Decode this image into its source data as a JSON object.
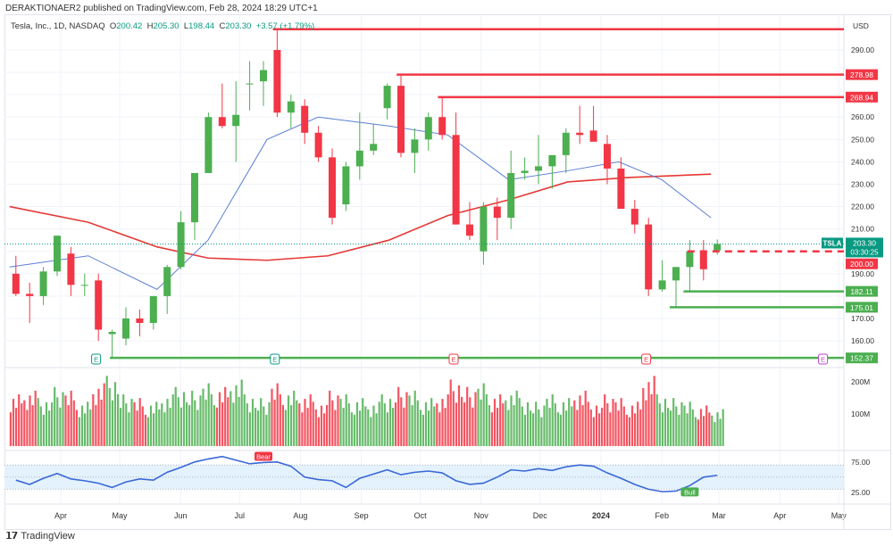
{
  "publisher_line": "DERAKTIONAER2 published on TradingView.com, Feb 28, 2024 18:29 UTC+1",
  "legend": {
    "symbol": "Tesla, Inc., 1D, NASDAQ",
    "o_label": "O",
    "o": "200.42",
    "h_label": "H",
    "h": "205.30",
    "l_label": "L",
    "l": "198.44",
    "c_label": "C",
    "c": "203.30",
    "change": "+3.57 (+1.79%)"
  },
  "footer": {
    "brand": "TradingView"
  },
  "colors": {
    "up": "#4caf50",
    "down": "#f23645",
    "ma_fast": "#5b7fd6",
    "ma_slow": "#e53935",
    "rsi": "#3a67d8",
    "rsi_band": "#e3f2fd",
    "earnings": "#089981",
    "earnings_future": "#c040d0",
    "last_price": "#089981"
  },
  "chart_data": [
    {
      "type": "candlestick",
      "title": "",
      "currency": "USD",
      "ylim": [
        150,
        300
      ],
      "y_ticks": [
        160,
        170,
        180,
        190,
        200,
        210,
        220,
        230,
        240,
        250,
        260,
        270,
        280,
        290
      ],
      "x_ticks": [
        {
          "date": "2023-04-01",
          "label": "Apr"
        },
        {
          "date": "2023-05-01",
          "label": "May"
        },
        {
          "date": "2023-06-01",
          "label": "Jun"
        },
        {
          "date": "2023-07-01",
          "label": "Jul"
        },
        {
          "date": "2023-08-01",
          "label": "Aug"
        },
        {
          "date": "2023-09-01",
          "label": "Sep"
        },
        {
          "date": "2023-10-01",
          "label": "Oct"
        },
        {
          "date": "2023-11-01",
          "label": "Nov"
        },
        {
          "date": "2023-12-01",
          "label": "Dec"
        },
        {
          "date": "2024-01-01",
          "label": "2024"
        },
        {
          "date": "2024-02-01",
          "label": "Feb"
        },
        {
          "date": "2024-03-01",
          "label": "Mar"
        },
        {
          "date": "2024-04-01",
          "label": "Apr"
        },
        {
          "date": "2024-05-01",
          "label": "May"
        }
      ],
      "bars": [
        [
          "2023-03-06",
          190,
          198,
          180,
          181
        ],
        [
          "2023-03-13",
          181,
          186,
          168,
          180
        ],
        [
          "2023-03-20",
          180,
          193,
          176,
          191
        ],
        [
          "2023-03-27",
          191,
          207,
          189,
          207
        ],
        [
          "2023-04-03",
          199,
          202,
          180,
          185
        ],
        [
          "2023-04-10",
          185,
          190,
          180,
          185
        ],
        [
          "2023-04-17",
          187,
          190,
          160,
          165
        ],
        [
          "2023-04-24",
          163,
          165,
          152,
          164
        ],
        [
          "2023-05-01",
          161,
          175,
          158,
          170
        ],
        [
          "2023-05-08",
          170,
          174,
          162,
          168
        ],
        [
          "2023-05-15",
          168,
          180,
          165,
          180
        ],
        [
          "2023-05-22",
          180,
          194,
          172,
          193
        ],
        [
          "2023-05-29",
          193,
          218,
          192,
          213
        ],
        [
          "2023-06-05",
          213,
          235,
          205,
          235
        ],
        [
          "2023-06-12",
          235,
          262,
          236,
          260
        ],
        [
          "2023-06-19",
          260,
          275,
          255,
          256
        ],
        [
          "2023-06-26",
          256,
          276,
          240,
          261
        ],
        [
          "2023-07-03",
          275,
          285,
          263,
          275
        ],
        [
          "2023-07-10",
          276,
          285,
          265,
          281
        ],
        [
          "2023-07-17",
          290,
          299,
          260,
          262
        ],
        [
          "2023-07-24",
          262,
          270,
          255,
          267
        ],
        [
          "2023-07-31",
          265,
          268,
          248,
          253
        ],
        [
          "2023-08-07",
          253,
          256,
          240,
          242
        ],
        [
          "2023-08-14",
          242,
          246,
          212,
          215
        ],
        [
          "2023-08-21",
          221,
          240,
          218,
          238
        ],
        [
          "2023-08-28",
          238,
          262,
          232,
          245
        ],
        [
          "2023-09-04",
          245,
          257,
          243,
          248
        ],
        [
          "2023-09-11",
          264,
          275,
          259,
          274
        ],
        [
          "2023-09-18",
          274,
          279,
          242,
          244
        ],
        [
          "2023-09-25",
          244,
          255,
          235,
          250
        ],
        [
          "2023-10-02",
          250,
          262,
          245,
          260
        ],
        [
          "2023-10-09",
          260,
          269,
          250,
          252
        ],
        [
          "2023-10-16",
          252,
          262,
          212,
          212
        ],
        [
          "2023-10-23",
          212,
          222,
          205,
          207
        ],
        [
          "2023-10-30",
          200,
          222,
          194,
          220
        ],
        [
          "2023-11-06",
          220,
          224,
          205,
          215
        ],
        [
          "2023-11-13",
          215,
          245,
          210,
          235
        ],
        [
          "2023-11-20",
          235,
          242,
          232,
          236
        ],
        [
          "2023-11-27",
          236,
          252,
          230,
          238
        ],
        [
          "2023-12-04",
          238,
          240,
          228,
          243
        ],
        [
          "2023-12-11",
          243,
          255,
          235,
          253
        ],
        [
          "2023-12-18",
          253,
          265,
          248,
          252
        ],
        [
          "2023-12-25",
          254,
          265,
          250,
          249
        ],
        [
          "2024-01-01",
          248,
          252,
          230,
          237
        ],
        [
          "2024-01-08",
          237,
          242,
          220,
          219
        ],
        [
          "2024-01-15",
          219,
          223,
          208,
          212
        ],
        [
          "2024-01-22",
          212,
          215,
          180,
          183
        ],
        [
          "2024-01-29",
          183,
          196,
          182,
          187
        ],
        [
          "2024-02-05",
          187,
          193,
          175,
          193
        ],
        [
          "2024-02-12",
          193,
          205,
          182,
          200
        ],
        [
          "2024-02-19",
          200,
          205,
          187,
          192
        ],
        [
          "2024-02-26",
          200.42,
          205.3,
          198.44,
          203.3
        ]
      ],
      "ma_fast": [
        [
          "2023-03-06",
          193
        ],
        [
          "2023-04-15",
          198
        ],
        [
          "2023-05-20",
          183
        ],
        [
          "2023-06-15",
          205
        ],
        [
          "2023-07-15",
          250
        ],
        [
          "2023-08-10",
          260
        ],
        [
          "2023-09-15",
          256
        ],
        [
          "2023-10-15",
          252
        ],
        [
          "2023-11-15",
          232
        ],
        [
          "2023-12-15",
          236
        ],
        [
          "2024-01-10",
          240
        ],
        [
          "2024-02-01",
          232
        ],
        [
          "2024-02-26",
          215
        ]
      ],
      "ma_slow": [
        [
          "2023-03-06",
          220
        ],
        [
          "2023-04-15",
          213
        ],
        [
          "2023-05-20",
          202
        ],
        [
          "2023-06-15",
          197
        ],
        [
          "2023-07-15",
          196
        ],
        [
          "2023-08-15",
          198
        ],
        [
          "2023-09-15",
          205
        ],
        [
          "2023-10-15",
          216
        ],
        [
          "2023-11-15",
          223
        ],
        [
          "2023-12-15",
          231
        ],
        [
          "2024-01-15",
          233
        ],
        [
          "2024-02-26",
          234.5
        ]
      ],
      "levels": [
        {
          "price": 299.29,
          "label": "",
          "start": "2023-07-18",
          "color": "#f23645",
          "style": "solid"
        },
        {
          "price": 278.98,
          "label": "278.98",
          "start": "2023-09-19",
          "color": "#f23645",
          "style": "solid"
        },
        {
          "price": 268.94,
          "label": "268.94",
          "start": "2023-10-10",
          "color": "#f23645",
          "style": "solid"
        },
        {
          "price": 200.0,
          "label": "200.00",
          "start": "2024-02-14",
          "color": "#f23645",
          "style": "dashed"
        },
        {
          "price": 182.11,
          "label": "182.11",
          "start": "2024-02-12",
          "color": "#4caf50",
          "style": "solid"
        },
        {
          "price": 175.01,
          "label": "175.01",
          "start": "2024-02-05",
          "color": "#4caf50",
          "style": "solid"
        },
        {
          "price": 152.37,
          "label": "152.37",
          "start": "2023-04-26",
          "color": "#4caf50",
          "style": "solid"
        }
      ],
      "last_price": {
        "symbol": "TSLA",
        "price": "203.30",
        "countdown": "03:30:25"
      },
      "earnings": [
        {
          "date": "2023-04-19",
          "label": "E",
          "future": false
        },
        {
          "date": "2023-07-19",
          "label": "E",
          "future": false
        },
        {
          "date": "2023-10-18",
          "label": "E",
          "future": false
        },
        {
          "date": "2024-01-24",
          "label": "E",
          "future": false
        },
        {
          "date": "2024-04-23",
          "label": "E",
          "future": true
        }
      ]
    },
    {
      "type": "bar",
      "title": "Volume",
      "y_ticks": [
        {
          "v": 100,
          "label": "100M"
        },
        {
          "v": 200,
          "label": "200M"
        }
      ],
      "ylim": [
        0,
        220
      ],
      "values_m": [
        140,
        150,
        130,
        160,
        150,
        120,
        170,
        190,
        140,
        130,
        120,
        140,
        160,
        150,
        170,
        160,
        180,
        140,
        130,
        170,
        150,
        140,
        120,
        150,
        140,
        130,
        120,
        140,
        160,
        150,
        130,
        140,
        180,
        160,
        170,
        140,
        150,
        130,
        120,
        140,
        130,
        150,
        120,
        140,
        130,
        120,
        190,
        140,
        130,
        120,
        110,
        100
      ]
    },
    {
      "type": "line",
      "title": "RSI",
      "y_ticks": [
        {
          "v": 75,
          "label": "75.00"
        },
        {
          "v": 25,
          "label": "25.00"
        }
      ],
      "band": [
        30,
        70
      ],
      "ylim": [
        10,
        90
      ],
      "values": [
        45,
        38,
        48,
        56,
        47,
        44,
        40,
        33,
        42,
        47,
        45,
        58,
        66,
        75,
        80,
        84,
        78,
        72,
        74,
        75,
        68,
        50,
        46,
        44,
        33,
        48,
        55,
        62,
        54,
        58,
        60,
        57,
        44,
        38,
        40,
        50,
        62,
        60,
        64,
        61,
        67,
        70,
        68,
        57,
        48,
        38,
        30,
        26,
        27,
        36,
        50,
        53
      ],
      "annotations": [
        {
          "label": "Bear",
          "index": 18,
          "color": "#f23645"
        },
        {
          "label": "Bull",
          "index": 49,
          "color": "#4caf50"
        }
      ]
    }
  ]
}
